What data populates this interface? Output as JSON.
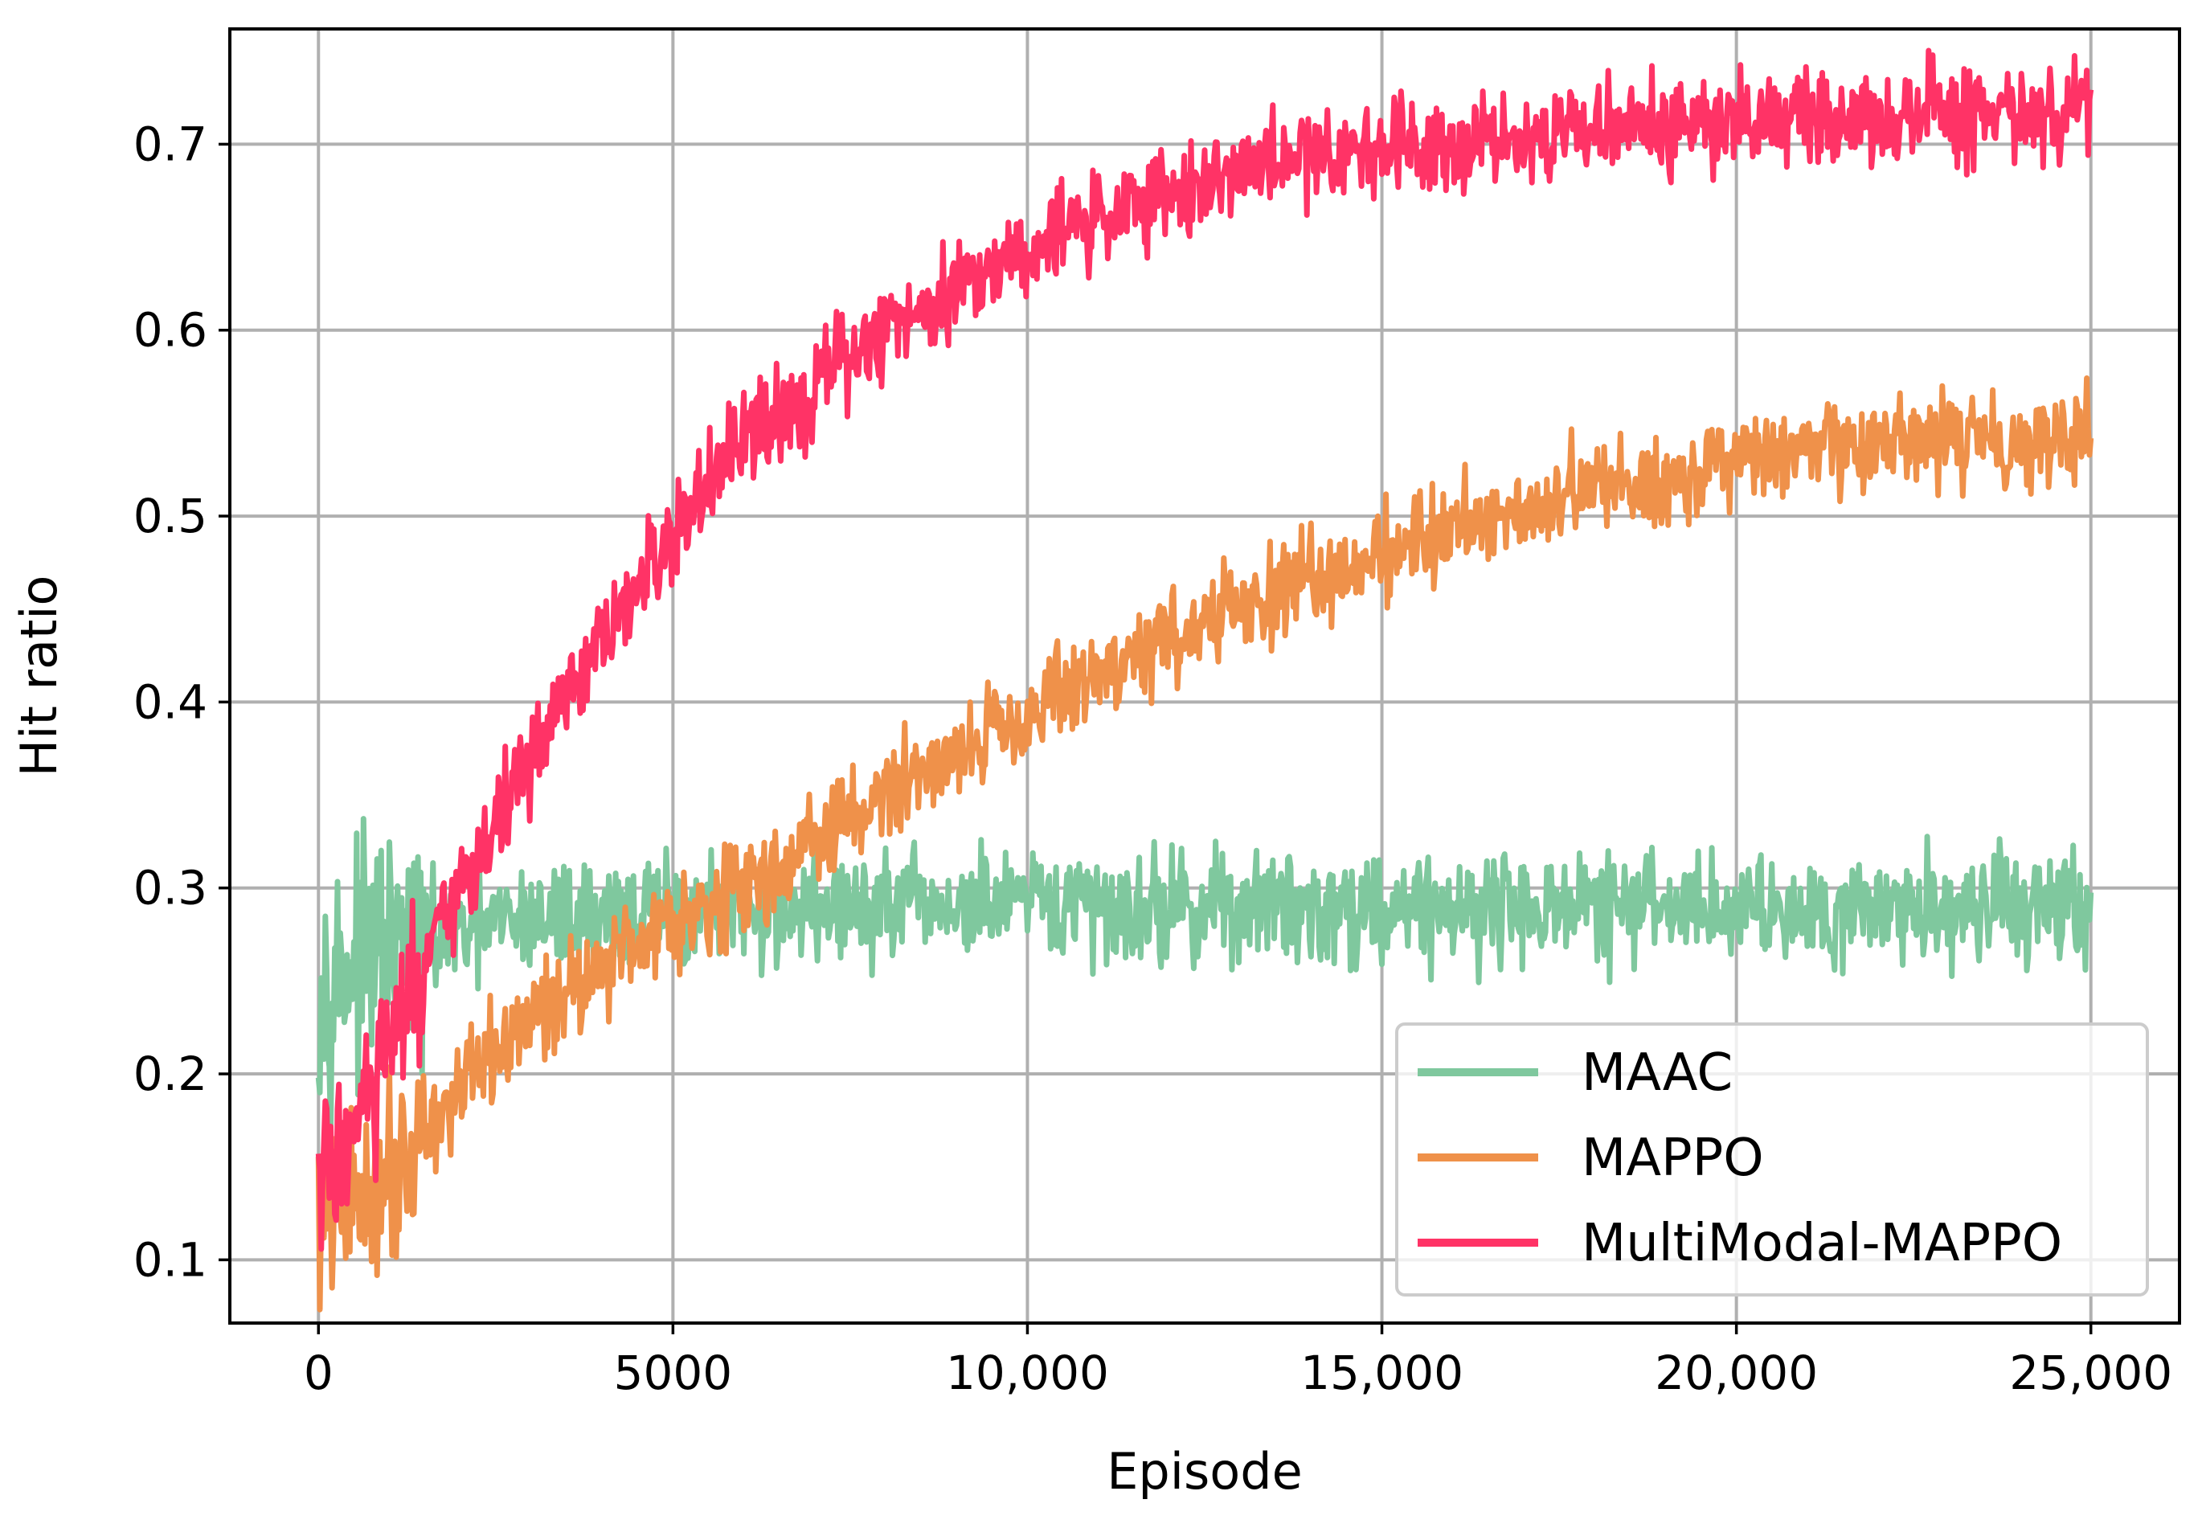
{
  "chart_data": {
    "type": "line",
    "title": "",
    "xlabel": "Episode",
    "ylabel": "Hit ratio",
    "xlim": [
      -1250,
      26250
    ],
    "ylim": [
      0.066,
      0.762
    ],
    "xticks": [
      0,
      5000,
      10000,
      15000,
      20000,
      25000
    ],
    "xtick_labels": [
      "0",
      "5000",
      "10,000",
      "15,000",
      "20,000",
      "25,000"
    ],
    "yticks": [
      0.1,
      0.2,
      0.3,
      0.4,
      0.5,
      0.6,
      0.7
    ],
    "ytick_labels": [
      "0.1",
      "0.2",
      "0.3",
      "0.4",
      "0.5",
      "0.6",
      "0.7"
    ],
    "grid": true,
    "legend_position": "lower-right",
    "series": [
      {
        "name": "MAAC",
        "color": "#7fc89e",
        "noise": 0.015,
        "x": [
          0,
          250,
          500,
          1000,
          1500,
          2000,
          2500,
          3000,
          4000,
          5000,
          6000,
          7000,
          8000,
          10000,
          12500,
          15000,
          17500,
          20000,
          22500,
          25000
        ],
        "mean": [
          0.25,
          0.255,
          0.26,
          0.265,
          0.27,
          0.275,
          0.28,
          0.283,
          0.285,
          0.287,
          0.288,
          0.289,
          0.289,
          0.29,
          0.29,
          0.29,
          0.29,
          0.29,
          0.29,
          0.29
        ]
      },
      {
        "name": "MAPPO",
        "color": "#ef914a",
        "noise": 0.013,
        "x": [
          0,
          500,
          1000,
          1500,
          2000,
          3000,
          4000,
          5000,
          6000,
          7000,
          8000,
          9000,
          10000,
          11000,
          12000,
          13000,
          14000,
          15000,
          16000,
          17000,
          18000,
          19000,
          20000,
          21000,
          22000,
          23000,
          24000,
          25000
        ],
        "mean": [
          0.12,
          0.13,
          0.15,
          0.17,
          0.19,
          0.23,
          0.26,
          0.285,
          0.3,
          0.325,
          0.35,
          0.375,
          0.395,
          0.415,
          0.435,
          0.45,
          0.465,
          0.48,
          0.495,
          0.505,
          0.515,
          0.52,
          0.528,
          0.533,
          0.537,
          0.54,
          0.543,
          0.545
        ]
      },
      {
        "name": "MultiModal-MAPPO",
        "color": "#ff3366",
        "noise": 0.013,
        "x": [
          0,
          500,
          1000,
          1500,
          2000,
          3000,
          4000,
          5000,
          6000,
          7000,
          8000,
          9000,
          10000,
          11000,
          12000,
          13000,
          14000,
          15000,
          16000,
          18000,
          20000,
          22000,
          25000
        ],
        "mean": [
          0.14,
          0.17,
          0.21,
          0.255,
          0.3,
          0.37,
          0.43,
          0.49,
          0.54,
          0.57,
          0.6,
          0.625,
          0.645,
          0.66,
          0.675,
          0.685,
          0.695,
          0.7,
          0.703,
          0.708,
          0.712,
          0.715,
          0.716
        ]
      }
    ]
  }
}
